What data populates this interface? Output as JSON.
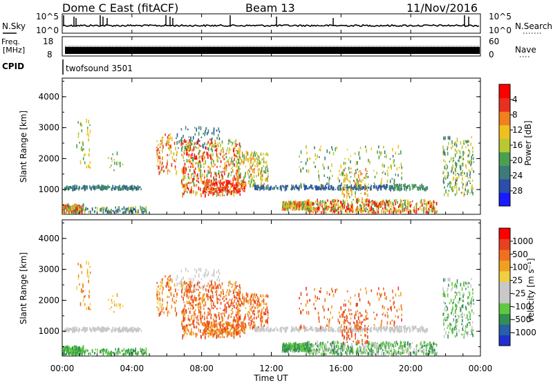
{
  "header": {
    "station": "Dome C East (fitACF)",
    "beam": "Beam 13",
    "date": "11/Nov/2016"
  },
  "top_panels": {
    "nsky": {
      "label": "N.Sky",
      "ticks": [
        "10^5",
        "10^0"
      ],
      "right_label": "N.Search",
      "right_ticks": [
        "10^5",
        "10^0"
      ]
    },
    "freq": {
      "label_line1": "Freq.",
      "label_line2": "[MHz]",
      "ticks": [
        "18",
        "8"
      ],
      "right_label": "Nave",
      "right_ticks": [
        "60",
        "0"
      ]
    },
    "cpid": {
      "label": "CPID",
      "value": "twofsound 3501"
    }
  },
  "chart_data": [
    {
      "type": "heatmap",
      "name": "power",
      "ylabel": "Slant Range [km]",
      "yticks": [
        1000,
        2000,
        3000,
        4000
      ],
      "ylim": [
        200,
        4600
      ],
      "colorbar_label": "Power [dB]",
      "colorbar_ticks": [
        "4",
        "8",
        "12",
        "16",
        "20",
        "24",
        "28"
      ],
      "colors": [
        "#1a1aff",
        "#2b4ea8",
        "#3d7a7a",
        "#4aa050",
        "#b8c832",
        "#f0c020",
        "#f08020",
        "#e83020",
        "#ff0000"
      ]
    },
    {
      "type": "heatmap",
      "name": "velocity",
      "ylabel": "Slant Range [km]",
      "yticks": [
        1000,
        2000,
        3000,
        4000
      ],
      "ylim": [
        200,
        4600
      ],
      "colorbar_label": "Velocity [m s⁻¹]",
      "colorbar_ticks": [
        "1000",
        "500",
        "100",
        "25",
        "-25",
        "-100",
        "-500",
        "-1000"
      ],
      "colors": [
        "#2030d0",
        "#2860a8",
        "#309050",
        "#60c840",
        "#c8c8c8",
        "#c8c8c8",
        "#f0d040",
        "#f0a020",
        "#f07020",
        "#e84020",
        "#ff0000"
      ]
    }
  ],
  "xaxis": {
    "label": "Time UT",
    "ticks": [
      "00:00",
      "04:00",
      "08:00",
      "12:00",
      "16:00",
      "20:00",
      "00:00"
    ]
  }
}
